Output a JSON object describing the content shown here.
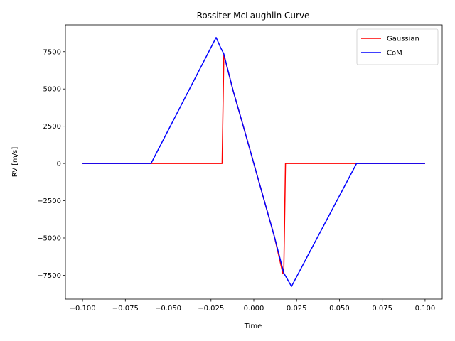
{
  "chart_data": {
    "type": "line",
    "title": "Rossiter-McLaughlin Curve",
    "xlabel": "Time",
    "ylabel": "RV [m/s]",
    "xlim": [
      -0.11,
      0.11
    ],
    "ylim": [
      -9100,
      9300
    ],
    "xticks": [
      -0.1,
      -0.075,
      -0.05,
      -0.025,
      0.0,
      0.025,
      0.05,
      0.075,
      0.1
    ],
    "xtick_labels": [
      "−0.100",
      "−0.075",
      "−0.050",
      "−0.025",
      "0.000",
      "0.025",
      "0.050",
      "0.075",
      "0.100"
    ],
    "yticks": [
      -7500,
      -5000,
      -2500,
      0,
      2500,
      5000,
      7500
    ],
    "ytick_labels": [
      "−7500",
      "−5000",
      "−2500",
      "0",
      "2500",
      "5000",
      "7500"
    ],
    "grid": false,
    "legend_position": "upper right",
    "series": [
      {
        "name": "Gaussian",
        "color": "#ff0000",
        "x": [
          -0.1,
          -0.06,
          -0.0185,
          -0.0175,
          -0.012,
          -0.006,
          0.0,
          0.006,
          0.012,
          0.017,
          0.0175,
          0.0185,
          0.06,
          0.1
        ],
        "y": [
          0,
          0,
          0,
          7300,
          4850,
          2450,
          0,
          -2450,
          -4900,
          -7400,
          -7300,
          0,
          0,
          0
        ]
      },
      {
        "name": "CoM",
        "color": "#0000ff",
        "x": [
          -0.1,
          -0.06,
          -0.022,
          -0.0195,
          -0.0175,
          -0.012,
          -0.006,
          0.0,
          0.006,
          0.012,
          0.0175,
          0.0195,
          0.022,
          0.06,
          0.1
        ],
        "y": [
          0,
          0,
          8450,
          7800,
          7350,
          4850,
          2450,
          0,
          -2450,
          -4900,
          -7350,
          -7750,
          -8250,
          0,
          0
        ]
      }
    ]
  }
}
